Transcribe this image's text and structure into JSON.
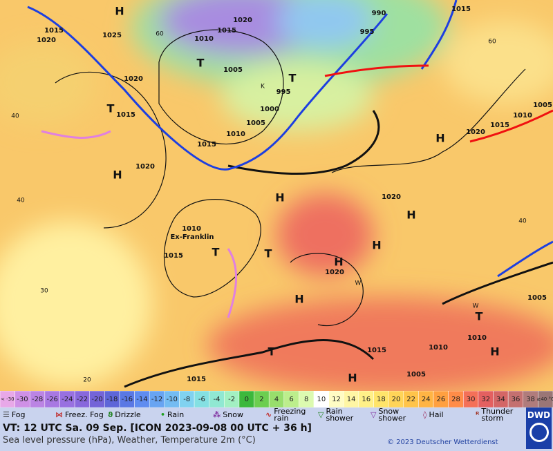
{
  "map": {
    "labels": [
      "H",
      1015,
      1020,
      1025,
      60,
      1010,
      1015,
      1020,
      "T",
      1005,
      "T",
      995,
      1000,
      1005,
      1010,
      1015,
      990,
      995,
      1015,
      60,
      1020,
      "T",
      1015,
      40,
      1020,
      "H",
      1020,
      1015,
      1010,
      1005,
      "H",
      "H",
      1020,
      "H",
      "H",
      1010,
      "Ex-Franklin",
      "T",
      "T",
      1015,
      "H",
      1020,
      "H",
      "W",
      "W",
      "T",
      1005,
      1010,
      1015,
      "H",
      "T",
      1015,
      "H",
      1010,
      1005,
      40,
      30,
      20,
      40,
      "K"
    ]
  },
  "scale": {
    "labels": [
      "< -30",
      -30,
      -28,
      -26,
      -24,
      -22,
      -20,
      -18,
      -16,
      -14,
      -12,
      -10,
      -8,
      -6,
      -4,
      -2,
      0,
      2,
      4,
      6,
      8,
      10,
      12,
      14,
      16,
      18,
      20,
      22,
      24,
      26,
      28,
      30,
      32,
      34,
      36,
      38,
      "≥40 °C"
    ],
    "colors": [
      "#e8a8e8",
      "#cf90e6",
      "#bb84e4",
      "#a878e2",
      "#9870e0",
      "#8868dc",
      "#7464d8",
      "#5e66d8",
      "#5a78e4",
      "#5f8cf0",
      "#68a4f2",
      "#74bcf2",
      "#80d2f0",
      "#84e0e2",
      "#90e8d2",
      "#a2f0c2",
      "#3cb83c",
      "#6cce50",
      "#98de6c",
      "#bcee8c",
      "#dcfab0",
      "#ffffff",
      "#fffcc4",
      "#fff6a4",
      "#fff088",
      "#ffe46a",
      "#ffd458",
      "#ffc44a",
      "#ffb444",
      "#ffa040",
      "#ff8c48",
      "#f47058",
      "#e46060",
      "#d46666",
      "#c47070",
      "#b07c7c",
      "#9a7676"
    ]
  },
  "legend": [
    "Fog",
    "Freez. Fog",
    "Drizzle",
    "Rain",
    "Snow",
    "Freezing rain",
    "Rain shower",
    "Snow shower",
    "Hail",
    "Thunder storm"
  ],
  "footer": {
    "line1": "VT: 12 UTC Sa.  09 Sep. [ICON 2023-09-08  00 UTC + 36 h]",
    "line2": "Sea level pressure (hPa), Weather, Temperature 2m (°C)",
    "copyright": "© 2023 Deutscher Wetterdienst",
    "logo": "DWD"
  }
}
